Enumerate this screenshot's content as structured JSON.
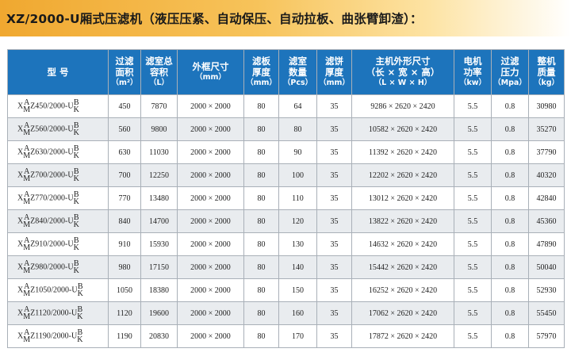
{
  "banner": {
    "title": "XZ/2000-U厢式压滤机（液压压紧、自动保压、自动拉板、曲张臂卸渣）："
  },
  "headers": [
    {
      "lines": [
        "型 号"
      ],
      "unit": ""
    },
    {
      "lines": [
        "过滤",
        "面积"
      ],
      "unit": "（m²）"
    },
    {
      "lines": [
        "滤室总",
        "容积"
      ],
      "unit": "（L）"
    },
    {
      "lines": [
        "外框尺寸"
      ],
      "unit": "（mm）"
    },
    {
      "lines": [
        "滤板",
        "厚度"
      ],
      "unit": "（mm）"
    },
    {
      "lines": [
        "滤室",
        "数量"
      ],
      "unit": "（Pcs）"
    },
    {
      "lines": [
        "滤饼",
        "厚度"
      ],
      "unit": "（mm）"
    },
    {
      "lines": [
        "主机外形尺寸",
        "（长 × 宽 × 高）"
      ],
      "unit": "（L × W × H）"
    },
    {
      "lines": [
        "电机",
        "功率"
      ],
      "unit": "（kw）"
    },
    {
      "lines": [
        "过滤",
        "压力"
      ],
      "unit": "（Mpa）"
    },
    {
      "lines": [
        "整机",
        "质量"
      ],
      "unit": "（kg）"
    }
  ],
  "model_parts": {
    "x": "X",
    "sup_a": "A",
    "sub_m": "M",
    "u": "U",
    "sup_b": "B",
    "sub_k": "K"
  },
  "rows": [
    {
      "code": "Z450/2000-",
      "area": "450",
      "volume": "7870",
      "frame": "2000 × 2000",
      "plate": "80",
      "chambers": "64",
      "cake": "35",
      "dims": "9286 × 2620 × 2420",
      "power": "5.5",
      "pressure": "0.8",
      "mass": "30980"
    },
    {
      "code": "Z560/2000-",
      "area": "560",
      "volume": "9800",
      "frame": "2000 × 2000",
      "plate": "80",
      "chambers": "80",
      "cake": "35",
      "dims": "10582 × 2620 × 2420",
      "power": "5.5",
      "pressure": "0.8",
      "mass": "35270"
    },
    {
      "code": "Z630/2000-",
      "area": "630",
      "volume": "11030",
      "frame": "2000 × 2000",
      "plate": "80",
      "chambers": "90",
      "cake": "35",
      "dims": "11392 × 2620 × 2420",
      "power": "5.5",
      "pressure": "0.8",
      "mass": "37790"
    },
    {
      "code": "Z700/2000-",
      "area": "700",
      "volume": "12250",
      "frame": "2000 × 2000",
      "plate": "80",
      "chambers": "100",
      "cake": "35",
      "dims": "12202 × 2620 × 2420",
      "power": "5.5",
      "pressure": "0.8",
      "mass": "40320"
    },
    {
      "code": "Z770/2000-",
      "area": "770",
      "volume": "13480",
      "frame": "2000 × 2000",
      "plate": "80",
      "chambers": "110",
      "cake": "35",
      "dims": "13012 × 2620 × 2420",
      "power": "5.5",
      "pressure": "0.8",
      "mass": "42840"
    },
    {
      "code": "Z840/2000-",
      "area": "840",
      "volume": "14700",
      "frame": "2000 × 2000",
      "plate": "80",
      "chambers": "120",
      "cake": "35",
      "dims": "13822 × 2620 × 2420",
      "power": "5.5",
      "pressure": "0.8",
      "mass": "45360"
    },
    {
      "code": "Z910/2000-",
      "area": "910",
      "volume": "15930",
      "frame": "2000 × 2000",
      "plate": "80",
      "chambers": "130",
      "cake": "35",
      "dims": "14632 × 2620 × 2420",
      "power": "5.5",
      "pressure": "0.8",
      "mass": "47890"
    },
    {
      "code": "Z980/2000-",
      "area": "980",
      "volume": "17150",
      "frame": "2000 × 2000",
      "plate": "80",
      "chambers": "140",
      "cake": "35",
      "dims": "15442 × 2620 × 2420",
      "power": "5.5",
      "pressure": "0.8",
      "mass": "50040"
    },
    {
      "code": "Z1050/2000-",
      "area": "1050",
      "volume": "18380",
      "frame": "2000 × 2000",
      "plate": "80",
      "chambers": "150",
      "cake": "35",
      "dims": "16252 × 2620 × 2420",
      "power": "5.5",
      "pressure": "0.8",
      "mass": "52930"
    },
    {
      "code": "Z1120/2000-",
      "area": "1120",
      "volume": "19600",
      "frame": "2000 × 2000",
      "plate": "80",
      "chambers": "160",
      "cake": "35",
      "dims": "17062 × 2620 × 2420",
      "power": "5.5",
      "pressure": "0.8",
      "mass": "55450"
    },
    {
      "code": "Z1190/2000-",
      "area": "1190",
      "volume": "20830",
      "frame": "2000 × 2000",
      "plate": "80",
      "chambers": "170",
      "cake": "35",
      "dims": "17872 × 2620 × 2420",
      "power": "5.5",
      "pressure": "0.8",
      "mass": "57970"
    }
  ],
  "colors": {
    "header_bg": "#1d74bc",
    "banner_orange": "#f0a830",
    "row_alt": "#e9ecef"
  }
}
